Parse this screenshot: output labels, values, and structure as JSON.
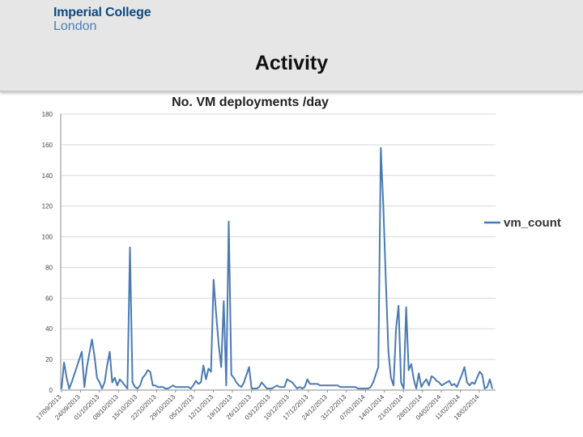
{
  "header": {
    "logo_line1": "Imperial College",
    "logo_line2": "London",
    "slide_title": "Activity"
  },
  "colors": {
    "series": "#4a7ab3",
    "grid": "#d9d9d9",
    "axis": "#8a8a8a"
  },
  "chart_data": {
    "type": "line",
    "title": "No. VM deployments /day",
    "xlabel": "",
    "ylabel": "",
    "ylim": [
      0,
      180
    ],
    "yticks": [
      0,
      20,
      40,
      60,
      80,
      100,
      120,
      140,
      160,
      180
    ],
    "grid": true,
    "legend_position": "right",
    "xtick_labels": [
      "17/09/2013",
      "24/09/2013",
      "01/10/2013",
      "08/10/2013",
      "15/10/2013",
      "22/10/2013",
      "29/10/2013",
      "05/11/2013",
      "12/11/2013",
      "19/11/2013",
      "26/11/2013",
      "03/12/2013",
      "10/12/2013",
      "17/12/2013",
      "24/12/2013",
      "31/12/2013",
      "07/01/2014",
      "14/01/2014",
      "21/01/2014",
      "28/01/2014",
      "04/02/2014",
      "11/02/2014",
      "18/02/2014"
    ],
    "series": [
      {
        "name": "vm_count",
        "values": [
          1,
          18,
          8,
          1,
          5,
          10,
          15,
          20,
          25,
          2,
          15,
          24,
          33,
          22,
          8,
          5,
          1,
          5,
          16,
          25,
          5,
          8,
          3,
          7,
          5,
          3,
          1,
          93,
          5,
          2,
          1,
          3,
          8,
          10,
          13,
          12,
          3,
          3,
          2,
          2,
          2,
          1,
          1,
          2,
          3,
          2,
          2,
          2,
          2,
          2,
          2,
          1,
          3,
          6,
          4,
          5,
          16,
          7,
          14,
          12,
          72,
          50,
          30,
          15,
          58,
          3,
          110,
          10,
          8,
          5,
          3,
          2,
          5,
          10,
          15,
          1,
          1,
          1,
          2,
          5,
          3,
          1,
          1,
          1,
          2,
          3,
          2,
          2,
          2,
          7,
          6,
          5,
          3,
          1,
          2,
          1,
          2,
          7,
          4,
          4,
          4,
          4,
          3,
          3,
          3,
          3,
          3,
          3,
          3,
          3,
          2,
          2,
          2,
          2,
          2,
          2,
          2,
          1,
          1,
          1,
          1,
          1,
          2,
          5,
          10,
          15,
          158,
          120,
          70,
          25,
          8,
          3,
          40,
          55,
          5,
          1,
          54,
          13,
          17,
          7,
          1,
          11,
          2,
          5,
          7,
          3,
          9,
          8,
          6,
          5,
          3,
          4,
          5,
          6,
          3,
          4,
          2,
          6,
          10,
          15,
          5,
          3,
          5,
          4,
          8,
          12,
          10,
          1,
          2,
          7,
          1
        ]
      }
    ]
  }
}
